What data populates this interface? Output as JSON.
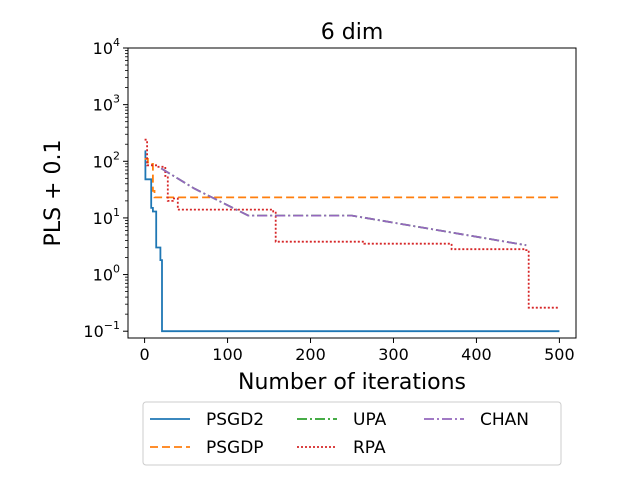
{
  "chart_data": {
    "type": "line",
    "title": "6 dim",
    "xlabel": "Number of iterations",
    "ylabel": "PLS + 0.1",
    "xlim": [
      -20,
      520
    ],
    "ylim_log10": [
      -1.12,
      4
    ],
    "y_scale": "log",
    "x_ticks": [
      0,
      100,
      200,
      300,
      400,
      500
    ],
    "x_tick_labels": [
      "0",
      "100",
      "200",
      "300",
      "400",
      "500"
    ],
    "y_ticks": [
      0.1,
      1,
      10,
      100,
      1000,
      10000
    ],
    "y_tick_labels": [
      {
        "base": "10",
        "exp": "−1"
      },
      {
        "base": "10",
        "exp": "0"
      },
      {
        "base": "10",
        "exp": "1"
      },
      {
        "base": "10",
        "exp": "2"
      },
      {
        "base": "10",
        "exp": "3"
      },
      {
        "base": "10",
        "exp": "4"
      }
    ],
    "grid": false,
    "legend_placement": "bottom-center",
    "series": [
      {
        "name": "PSGD2",
        "color": "#1f77b4",
        "dash": "solid",
        "points": [
          [
            0,
            150
          ],
          [
            1,
            150
          ],
          [
            1,
            48
          ],
          [
            8,
            48
          ],
          [
            8,
            15
          ],
          [
            10,
            15
          ],
          [
            10,
            13
          ],
          [
            14,
            13
          ],
          [
            14,
            3
          ],
          [
            19,
            3
          ],
          [
            19,
            1.8
          ],
          [
            21,
            1.8
          ],
          [
            21,
            0.1
          ],
          [
            500,
            0.1
          ]
        ]
      },
      {
        "name": "PSGDP",
        "color": "#ff7f0e",
        "dash": "8,4",
        "points": [
          [
            0,
            110
          ],
          [
            4,
            110
          ],
          [
            4,
            95
          ],
          [
            9,
            95
          ],
          [
            9,
            90
          ],
          [
            10,
            90
          ],
          [
            10,
            30
          ],
          [
            12,
            30
          ],
          [
            12,
            23
          ],
          [
            500,
            23
          ]
        ]
      },
      {
        "name": "UPA",
        "color": "#2ca02c",
        "dash": "10,3,2,3",
        "points": [
          [
            20,
            75
          ],
          [
            60,
            33
          ],
          [
            125,
            11
          ],
          [
            250,
            11
          ],
          [
            460,
            3.3
          ]
        ]
      },
      {
        "name": "RPA",
        "color": "#d62728",
        "dash": "2,2",
        "points": [
          [
            0,
            240
          ],
          [
            3,
            240
          ],
          [
            3,
            85
          ],
          [
            15,
            85
          ],
          [
            15,
            80
          ],
          [
            25,
            80
          ],
          [
            25,
            55
          ],
          [
            28,
            55
          ],
          [
            28,
            20
          ],
          [
            34,
            20
          ],
          [
            34,
            22
          ],
          [
            40,
            22
          ],
          [
            40,
            14
          ],
          [
            155,
            14
          ],
          [
            155,
            13
          ],
          [
            158,
            13
          ],
          [
            158,
            3.8
          ],
          [
            265,
            3.8
          ],
          [
            265,
            3.5
          ],
          [
            370,
            3.5
          ],
          [
            370,
            2.8
          ],
          [
            460,
            2.8
          ],
          [
            460,
            2.7
          ],
          [
            463,
            2.7
          ],
          [
            463,
            0.26
          ],
          [
            500,
            0.26
          ]
        ]
      },
      {
        "name": "CHAN",
        "color": "#9467bd",
        "dash": "10,3,2,3",
        "points": [
          [
            20,
            75
          ],
          [
            60,
            33
          ],
          [
            125,
            11
          ],
          [
            250,
            11
          ],
          [
            460,
            3.3
          ]
        ]
      }
    ]
  }
}
